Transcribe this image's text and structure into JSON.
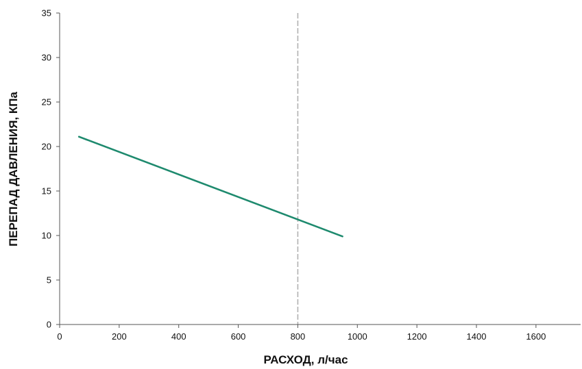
{
  "chart_data": {
    "type": "line",
    "title": "",
    "xlabel": "РАСХОД, л/час",
    "ylabel": "ПЕРЕПАД ДАВЛЕНИЯ, КПа",
    "xlim": [
      0,
      1750
    ],
    "ylim": [
      0,
      35
    ],
    "x_ticks": [
      "0",
      "200",
      "400",
      "600",
      "800",
      "1000",
      "1200",
      "1400",
      "1600"
    ],
    "y_ticks": [
      "0",
      "5",
      "10",
      "15",
      "20",
      "25",
      "30",
      "35"
    ],
    "grid": false,
    "legend": "none",
    "series": [
      {
        "color": "#1e8a6e",
        "x": [
          65,
          950
        ],
        "y": [
          21.1,
          9.9
        ]
      }
    ],
    "reference_lines": [
      {
        "orientation": "vertical",
        "x": 800,
        "style": "dashed",
        "color": "#b0b0b0"
      }
    ]
  }
}
